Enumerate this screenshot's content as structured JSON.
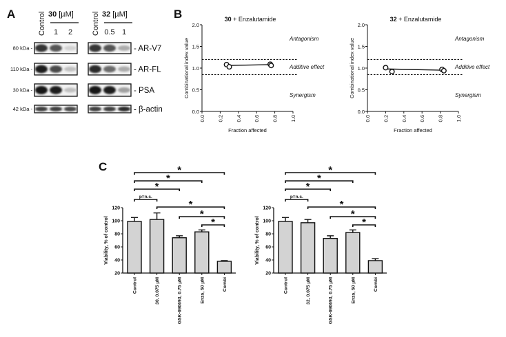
{
  "panel_labels": {
    "a": "A",
    "b": "B",
    "c": "C"
  },
  "western_blot": {
    "groups": [
      {
        "compound": "30",
        "unit": "[µM]",
        "lanes": [
          "Control",
          "1",
          "2"
        ]
      },
      {
        "compound": "32",
        "unit": "[µM]",
        "lanes": [
          "Control",
          "0.5",
          "1"
        ]
      }
    ],
    "rows": [
      {
        "protein": "- AR-V7",
        "mw": "80 kDa -",
        "intensity": [
          [
            0.85,
            0.7,
            0.12
          ],
          [
            0.85,
            0.7,
            0.3
          ]
        ]
      },
      {
        "protein": "- AR-FL",
        "mw": "110 kDa -",
        "intensity": [
          [
            0.95,
            0.75,
            0.2
          ],
          [
            0.9,
            0.6,
            0.3
          ]
        ]
      },
      {
        "protein": "- PSA",
        "mw": "30 kDa -",
        "intensity": [
          [
            1.0,
            0.95,
            0.2
          ],
          [
            1.0,
            0.95,
            0.35
          ]
        ]
      },
      {
        "protein": "- β-actin",
        "mw": "42 kDa -",
        "intensity": [
          [
            0.8,
            0.8,
            0.75
          ],
          [
            0.8,
            0.8,
            0.9
          ]
        ]
      }
    ]
  },
  "chart_data": [
    {
      "type": "scatter",
      "title_bold": "30",
      "title_rest": " + Enzalutamide",
      "xlabel": "Fraction affected",
      "ylabel": "Combinational index value",
      "xlim": [
        0,
        1
      ],
      "ylim": [
        0,
        2
      ],
      "xticks": [
        "0.0",
        "0.2",
        "0.4",
        "0.6",
        "0.8",
        "1.0"
      ],
      "yticks": [
        "0.0",
        "0.5",
        "1.0",
        "1.5",
        "2.0"
      ],
      "reference_lines": [
        1.2,
        0.85
      ],
      "annotations": [
        "Antagonism",
        "Additive effect",
        "Synergism"
      ],
      "points": [
        [
          0.27,
          1.08
        ],
        [
          0.3,
          1.03
        ],
        [
          0.75,
          1.09
        ],
        [
          0.76,
          1.06
        ]
      ],
      "fit_line": [
        [
          0.28,
          1.06
        ],
        [
          0.76,
          1.08
        ]
      ]
    },
    {
      "type": "scatter",
      "title_bold": "32",
      "title_rest": " + Enzalutamide",
      "xlabel": "Fraction affected",
      "ylabel": "Combinational index value",
      "xlim": [
        0,
        1
      ],
      "ylim": [
        0,
        2
      ],
      "xticks": [
        "0.0",
        "0.2",
        "0.4",
        "0.6",
        "0.8",
        "1.0"
      ],
      "yticks": [
        "0.0",
        "0.5",
        "1.0",
        "1.5",
        "2.0"
      ],
      "reference_lines": [
        1.2,
        0.85
      ],
      "annotations": [
        "Antagonism",
        "Additive effect",
        "Synergism"
      ],
      "points": [
        [
          0.2,
          1.01
        ],
        [
          0.27,
          0.92
        ],
        [
          0.82,
          0.97
        ],
        [
          0.84,
          0.94
        ]
      ],
      "fit_line": [
        [
          0.2,
          0.98
        ],
        [
          0.84,
          0.95
        ]
      ]
    },
    {
      "type": "bar",
      "ylabel": "Viability, % of control",
      "ylim": [
        20,
        120
      ],
      "yticks": [
        "20",
        "40",
        "60",
        "80",
        "100",
        "120"
      ],
      "categories": [
        "Control",
        "30, 0.075 µM",
        "GSK-690693, 0.75 µM",
        "Enza, 50 µM",
        "Combi"
      ],
      "values": [
        99,
        102,
        74,
        83,
        38
      ],
      "errors": [
        6,
        10,
        3,
        3,
        1
      ],
      "significance": [
        {
          "from": 0,
          "to": 4,
          "label": "*"
        },
        {
          "from": 0,
          "to": 3,
          "label": "*"
        },
        {
          "from": 0,
          "to": 2,
          "label": "*"
        },
        {
          "from": 0,
          "to": 1,
          "label": "p=n.s."
        },
        {
          "from": 1,
          "to": 4,
          "label": "*"
        },
        {
          "from": 2,
          "to": 4,
          "label": "*"
        },
        {
          "from": 3,
          "to": 4,
          "label": "*"
        }
      ]
    },
    {
      "type": "bar",
      "ylabel": "Viability, % of control",
      "ylim": [
        20,
        120
      ],
      "yticks": [
        "20",
        "40",
        "60",
        "80",
        "100",
        "120"
      ],
      "categories": [
        "Control",
        "32, 0.075 µM",
        "GSK-690693, 0.75 µM",
        "Enza, 50 µM",
        "Combi"
      ],
      "values": [
        99,
        97,
        73,
        82,
        39
      ],
      "errors": [
        6,
        5,
        4,
        4,
        3
      ],
      "significance": [
        {
          "from": 0,
          "to": 4,
          "label": "*"
        },
        {
          "from": 0,
          "to": 3,
          "label": "*"
        },
        {
          "from": 0,
          "to": 2,
          "label": "*"
        },
        {
          "from": 0,
          "to": 1,
          "label": "p=n.s."
        },
        {
          "from": 1,
          "to": 4,
          "label": "*"
        },
        {
          "from": 2,
          "to": 4,
          "label": "*"
        },
        {
          "from": 3,
          "to": 4,
          "label": "*"
        }
      ]
    }
  ]
}
